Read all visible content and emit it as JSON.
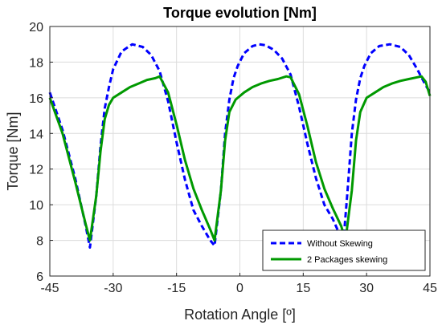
{
  "chart_data": {
    "type": "line",
    "title": "Torque evolution [Nm]",
    "xlabel": "Rotation Angle [º]",
    "ylabel": "Torque [Nm]",
    "xlim": [
      -45,
      45
    ],
    "ylim": [
      6,
      20
    ],
    "xticks": [
      "-45",
      "-30",
      "-15",
      "0",
      "15",
      "30",
      "45"
    ],
    "yticks": [
      "6",
      "8",
      "10",
      "12",
      "14",
      "16",
      "18",
      "20"
    ],
    "grid": true,
    "legend_position": "bottom-right",
    "series": [
      {
        "name": "Without Skewing",
        "color": "#0000ff",
        "style": "dashed",
        "x": [
          -45,
          -42,
          -39,
          -36.5,
          -35.5,
          -34,
          -33,
          -32,
          -31,
          -30,
          -28,
          -25.5,
          -23,
          -21,
          -19,
          -17,
          -15,
          -13,
          -11,
          -9,
          -7,
          -6,
          -4.5,
          -3.5,
          -2.5,
          -1.5,
          -0.5,
          1,
          3,
          4.5,
          6,
          8,
          10,
          12,
          14,
          16,
          18,
          20,
          22,
          23.5,
          24.5,
          25.5,
          26.5,
          27.5,
          28.5,
          29.5,
          31,
          33,
          35.5,
          38,
          40,
          42,
          44,
          45
        ],
        "y": [
          16.3,
          14.2,
          11.5,
          8.8,
          7.6,
          10.5,
          13.3,
          15.4,
          16.6,
          17.6,
          18.6,
          19.0,
          18.85,
          18.4,
          17.5,
          15.8,
          13.5,
          11.4,
          9.7,
          8.8,
          8.0,
          7.7,
          10.8,
          14.0,
          15.9,
          17.1,
          17.8,
          18.5,
          18.9,
          19.0,
          18.95,
          18.7,
          18.2,
          17.3,
          15.5,
          13.4,
          11.5,
          10.0,
          9.2,
          8.4,
          7.9,
          10.8,
          14.0,
          15.9,
          17.1,
          17.8,
          18.5,
          18.9,
          19.0,
          18.85,
          18.4,
          17.6,
          16.7,
          16.3
        ]
      },
      {
        "name": "2 Packages skewing",
        "color": "#009900",
        "style": "solid",
        "x": [
          -45,
          -42,
          -39,
          -36.5,
          -35.5,
          -34,
          -33,
          -32,
          -31,
          -30,
          -28,
          -26,
          -24,
          -22,
          -20,
          -19,
          -17,
          -15,
          -13,
          -11,
          -9,
          -7,
          -6,
          -4.5,
          -3.5,
          -2.5,
          -1,
          1,
          3,
          5,
          7,
          9,
          11,
          12,
          14,
          16,
          18,
          20,
          22,
          24,
          25,
          26.5,
          27.5,
          28.5,
          30,
          32,
          34,
          36,
          38,
          40,
          42,
          43,
          44,
          45
        ],
        "y": [
          16.0,
          14.0,
          11.3,
          8.9,
          8.0,
          10.5,
          13.0,
          14.8,
          15.6,
          16.0,
          16.3,
          16.6,
          16.8,
          17.0,
          17.1,
          17.2,
          16.3,
          14.5,
          12.5,
          10.9,
          9.7,
          8.6,
          8.0,
          10.8,
          13.6,
          15.2,
          15.9,
          16.3,
          16.6,
          16.8,
          16.95,
          17.05,
          17.2,
          17.15,
          16.2,
          14.4,
          12.4,
          10.9,
          9.8,
          8.8,
          8.0,
          10.8,
          13.6,
          15.2,
          16.0,
          16.3,
          16.6,
          16.8,
          16.95,
          17.05,
          17.15,
          17.2,
          16.9,
          16.1
        ]
      }
    ]
  }
}
